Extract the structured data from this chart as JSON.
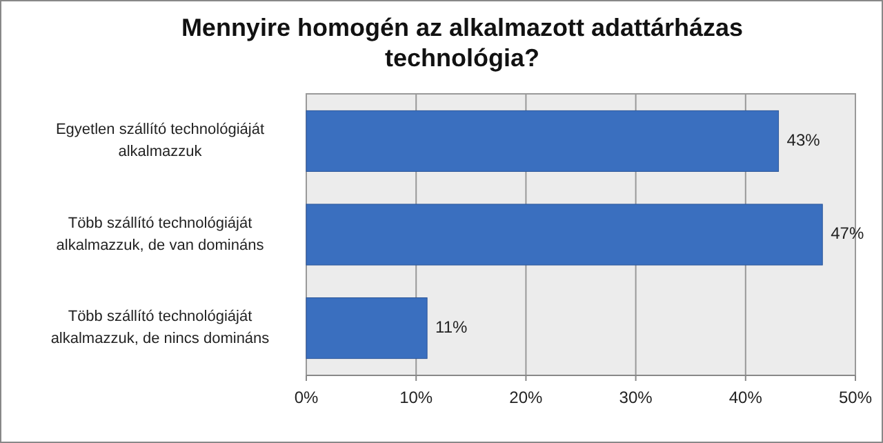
{
  "chart_data": {
    "type": "bar",
    "orientation": "horizontal",
    "title": "Mennyire homogén az alkalmazott adattárházas technológia?",
    "categories": [
      "Egyetlen szállító technológiáját alkalmazzuk",
      "Több szállító technológiáját alkalmazzuk, de van domináns",
      "Több szállító technológiáját alkalmazzuk, de nincs domináns"
    ],
    "values": [
      43,
      47,
      11
    ],
    "value_labels": [
      "43%",
      "47%",
      "11%"
    ],
    "color": "#3a6fbf",
    "xlim": [
      0,
      50
    ],
    "xticks": [
      {
        "value": 0,
        "label": "0%"
      },
      {
        "value": 10,
        "label": "10%"
      },
      {
        "value": 20,
        "label": "20%"
      },
      {
        "value": 30,
        "label": "30%"
      },
      {
        "value": 40,
        "label": "40%"
      },
      {
        "value": 50,
        "label": "50%"
      }
    ],
    "grid": "x"
  }
}
